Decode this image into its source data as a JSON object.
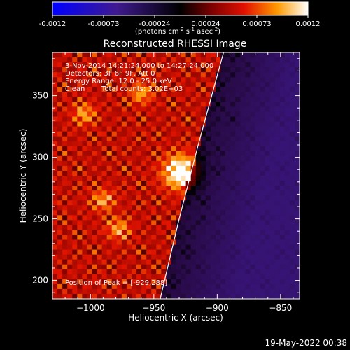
{
  "colorbar": {
    "ticks": [
      "-0.0012",
      "-0.00073",
      "-0.00024",
      "0.00024",
      "0.00073",
      "0.0012"
    ],
    "units_prefix": "(photons cm",
    "units_exp1": "-2",
    "units_mid": " s",
    "units_exp2": "-1",
    "units_mid2": " asec",
    "units_exp3": "-2",
    "units_suffix": ")"
  },
  "chart_data": {
    "type": "heatmap",
    "title": "Reconstructed RHESSI Image",
    "xlabel": "Heliocentric X (arcsec)",
    "ylabel": "Heliocentric Y (arcsec)",
    "xlim": [
      -1030,
      -835
    ],
    "ylim": [
      185,
      385
    ],
    "xticks": [
      -1000,
      -950,
      -900,
      -850
    ],
    "yticks": [
      200,
      250,
      300,
      350
    ],
    "xtick_labels": [
      "−1000",
      "−950",
      "−900",
      "−850"
    ],
    "ytick_labels": [
      "200",
      "250",
      "300",
      "350"
    ],
    "colormap": "hot-blue (IDL)",
    "value_range": [
      -0.0012,
      0.0012
    ],
    "peak": {
      "x": -929,
      "y": 288
    },
    "bright_sources": [
      {
        "x": -929,
        "y": 288
      },
      {
        "x": -990,
        "y": 265
      },
      {
        "x": -978,
        "y": 242
      },
      {
        "x": -1005,
        "y": 335
      },
      {
        "x": -960,
        "y": 352
      }
    ],
    "limb_curve": [
      [
        -945,
        185
      ],
      [
        -930,
        250
      ],
      [
        -915,
        310
      ],
      [
        -895,
        385
      ]
    ],
    "annotations": [
      "3-Nov-2014 14:21:24.000 to 14:27:24.000",
      "Detectors: 3F 6F 9F, Att 0",
      "Energy Range: 12.0 - 25.0 keV",
      "Clean",
      "Total counts: 3.02E+03",
      "Position of Peak = [-929,288]"
    ]
  },
  "footer": {
    "date": "19-May-2022 00:38"
  }
}
